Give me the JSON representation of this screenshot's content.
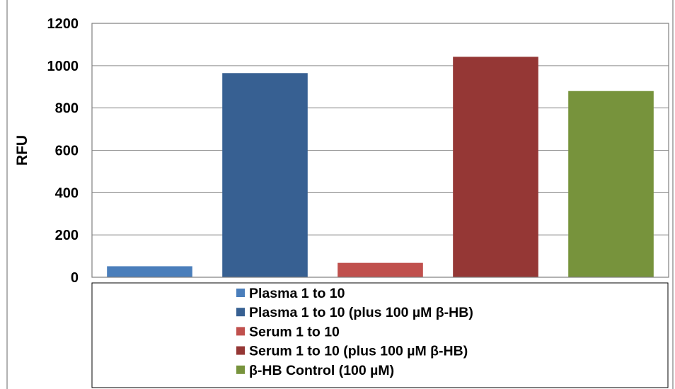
{
  "chart_data": {
    "type": "bar",
    "categories": [
      "Plasma 1 to 10",
      "Plasma 1 to 10 (plus 100 µM β-HB)",
      "Serum 1 to 10",
      "Serum 1 to 10 (plus 100 µM β-HB)",
      "β-HB Control (100 µM)"
    ],
    "values": [
      52,
      965,
      68,
      1042,
      880
    ],
    "colors": [
      "#4a7ebb",
      "#376092",
      "#c0504d",
      "#953735",
      "#77933c"
    ],
    "title": "",
    "xlabel": "",
    "ylabel": "RFU",
    "ylim": [
      0,
      1200
    ],
    "yticks": [
      0,
      200,
      400,
      600,
      800,
      1000,
      1200
    ],
    "ytick_labels": [
      "0",
      "200",
      "400",
      "600",
      "800",
      "1000",
      "1200"
    ],
    "grid": true,
    "legend": "bottom"
  }
}
